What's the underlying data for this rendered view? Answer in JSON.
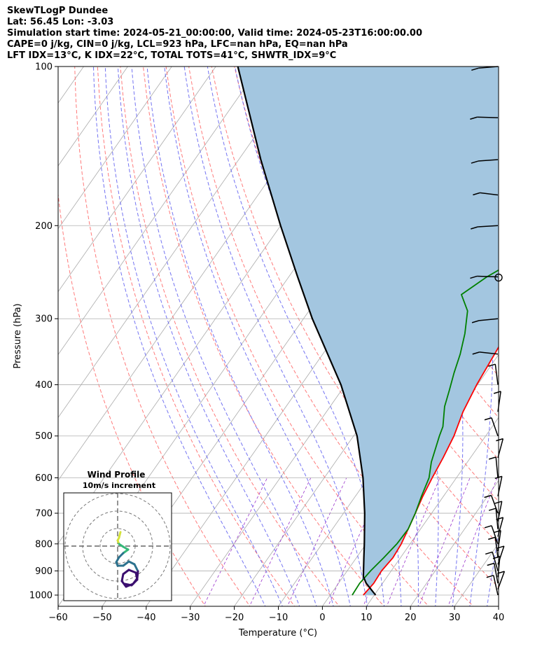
{
  "header": {
    "lines": [
      "SkewTLogP Dundee",
      "Lat: 56.45   Lon: -3.03",
      "Simulation start time: 2024-05-21_00:00:00, Valid time: 2024-05-23T16:00:00.00",
      "CAPE=0 j/kg, CIN=0 j/kg, LCL=923 hPa, LFC=nan hPa, EQ=nan hPa",
      "LFT IDX=13°C, K IDX=22°C, TOTAL TOTS=41°C, SHWTR_IDX=9°C"
    ]
  },
  "chart_data": {
    "type": "line",
    "title": "SkewTLogP Dundee",
    "xlabel": "Temperature (°C)",
    "ylabel": "Pressure (hPa)",
    "xlim": [
      -60,
      40
    ],
    "ylim": [
      1050,
      100
    ],
    "y_scale": "log",
    "x_ticks": [
      -60,
      -50,
      -40,
      -30,
      -20,
      -10,
      0,
      10,
      20,
      30,
      40
    ],
    "x_tick_labels": [
      "−60",
      "−50",
      "−40",
      "−30",
      "−20",
      "−10",
      "0",
      "10",
      "20",
      "30",
      "40"
    ],
    "y_ticks": [
      1000,
      900,
      800,
      700,
      600,
      500,
      400,
      300,
      200,
      100
    ],
    "y_tick_labels": [
      "1000",
      "900",
      "800",
      "700",
      "600",
      "500",
      "400",
      "300",
      "200",
      "100"
    ],
    "grid": true,
    "colors": {
      "temperature": "#ff0000",
      "dewpoint": "#008000",
      "parcel": "#000000",
      "fill": "#a3c6e0",
      "dry_adiabat": "#ff6b6b",
      "moist_adiabat": "#5c5cf0",
      "mixing_ratio": "#9933cc",
      "isotherm": "#aaaaaa"
    },
    "series": [
      {
        "key": "temperature",
        "points": [
          {
            "p": 1000,
            "t": 7.5
          },
          {
            "p": 950,
            "t": 8.0
          },
          {
            "p": 900,
            "t": 7.8
          },
          {
            "p": 850,
            "t": 8.3
          },
          {
            "p": 800,
            "t": 8.0
          },
          {
            "p": 750,
            "t": 7.2
          },
          {
            "p": 700,
            "t": 6.3
          },
          {
            "p": 650,
            "t": 5.3
          },
          {
            "p": 600,
            "t": 4.5
          },
          {
            "p": 550,
            "t": 3.8
          },
          {
            "p": 500,
            "t": 2.8
          },
          {
            "p": 450,
            "t": 1.0
          },
          {
            "p": 400,
            "t": -0.2
          },
          {
            "p": 350,
            "t": -1.0
          },
          {
            "p": 300,
            "t": -2.0
          },
          {
            "p": 290,
            "t": -1.1
          },
          {
            "p": 270,
            "t": 3.5
          },
          {
            "p": 240,
            "t": 9.2
          },
          {
            "p": 210,
            "t": 15.0
          },
          {
            "p": 190,
            "t": 20.0
          },
          {
            "p": 170,
            "t": 25.0
          },
          {
            "p": 150,
            "t": 29.0
          },
          {
            "p": 130,
            "t": 33.0
          },
          {
            "p": 115,
            "t": 36.0
          },
          {
            "p": 105,
            "t": 37.5
          },
          {
            "p": 100,
            "t": 38.0
          }
        ]
      },
      {
        "key": "dewpoint",
        "points": [
          {
            "p": 1000,
            "t": 5.0
          },
          {
            "p": 950,
            "t": 4.8
          },
          {
            "p": 900,
            "t": 5.3
          },
          {
            "p": 850,
            "t": 6.2
          },
          {
            "p": 800,
            "t": 7.0
          },
          {
            "p": 750,
            "t": 7.2
          },
          {
            "p": 700,
            "t": 6.3
          },
          {
            "p": 650,
            "t": 5.0
          },
          {
            "p": 600,
            "t": 3.8
          },
          {
            "p": 560,
            "t": 1.8
          },
          {
            "p": 500,
            "t": -0.5
          },
          {
            "p": 480,
            "t": -1.2
          },
          {
            "p": 440,
            "t": -4.0
          },
          {
            "p": 410,
            "t": -5.5
          },
          {
            "p": 380,
            "t": -7.2
          },
          {
            "p": 350,
            "t": -8.8
          },
          {
            "p": 320,
            "t": -11.0
          },
          {
            "p": 290,
            "t": -14.0
          },
          {
            "p": 270,
            "t": -18.0
          },
          {
            "p": 250,
            "t": -15.0
          },
          {
            "p": 232,
            "t": -11.0
          },
          {
            "p": 215,
            "t": -10.0
          },
          {
            "p": 200,
            "t": -11.5
          },
          {
            "p": 185,
            "t": -14.0
          },
          {
            "p": 170,
            "t": -11.0
          },
          {
            "p": 150,
            "t": -2.0
          },
          {
            "p": 130,
            "t": 6.0
          },
          {
            "p": 115,
            "t": 13.0
          },
          {
            "p": 100,
            "t": 20.0
          }
        ]
      },
      {
        "key": "parcel",
        "points": [
          {
            "p": 1000,
            "t": 10.3
          },
          {
            "p": 950,
            "t": 6.3
          },
          {
            "p": 923,
            "t": 4.6
          },
          {
            "p": 850,
            "t": 1.7
          },
          {
            "p": 800,
            "t": -0.4
          },
          {
            "p": 700,
            "t": -5.2
          },
          {
            "p": 600,
            "t": -11.2
          },
          {
            "p": 500,
            "t": -19.2
          },
          {
            "p": 400,
            "t": -31.0
          },
          {
            "p": 300,
            "t": -48.0
          },
          {
            "p": 250,
            "t": -58.0
          },
          {
            "p": 200,
            "t": -70.0
          },
          {
            "p": 150,
            "t": -85.0
          },
          {
            "p": 100,
            "t": -105.0
          }
        ]
      }
    ],
    "wind_barbs_at_pressures": [
      1000,
      975,
      950,
      925,
      900,
      875,
      850,
      825,
      800,
      775,
      750,
      725,
      700,
      650,
      600,
      550,
      500,
      450,
      400,
      350,
      300,
      250,
      200,
      175,
      150,
      125,
      100
    ],
    "inset": {
      "title": "Wind Profile",
      "subtitle": "10m/s increment"
    }
  }
}
